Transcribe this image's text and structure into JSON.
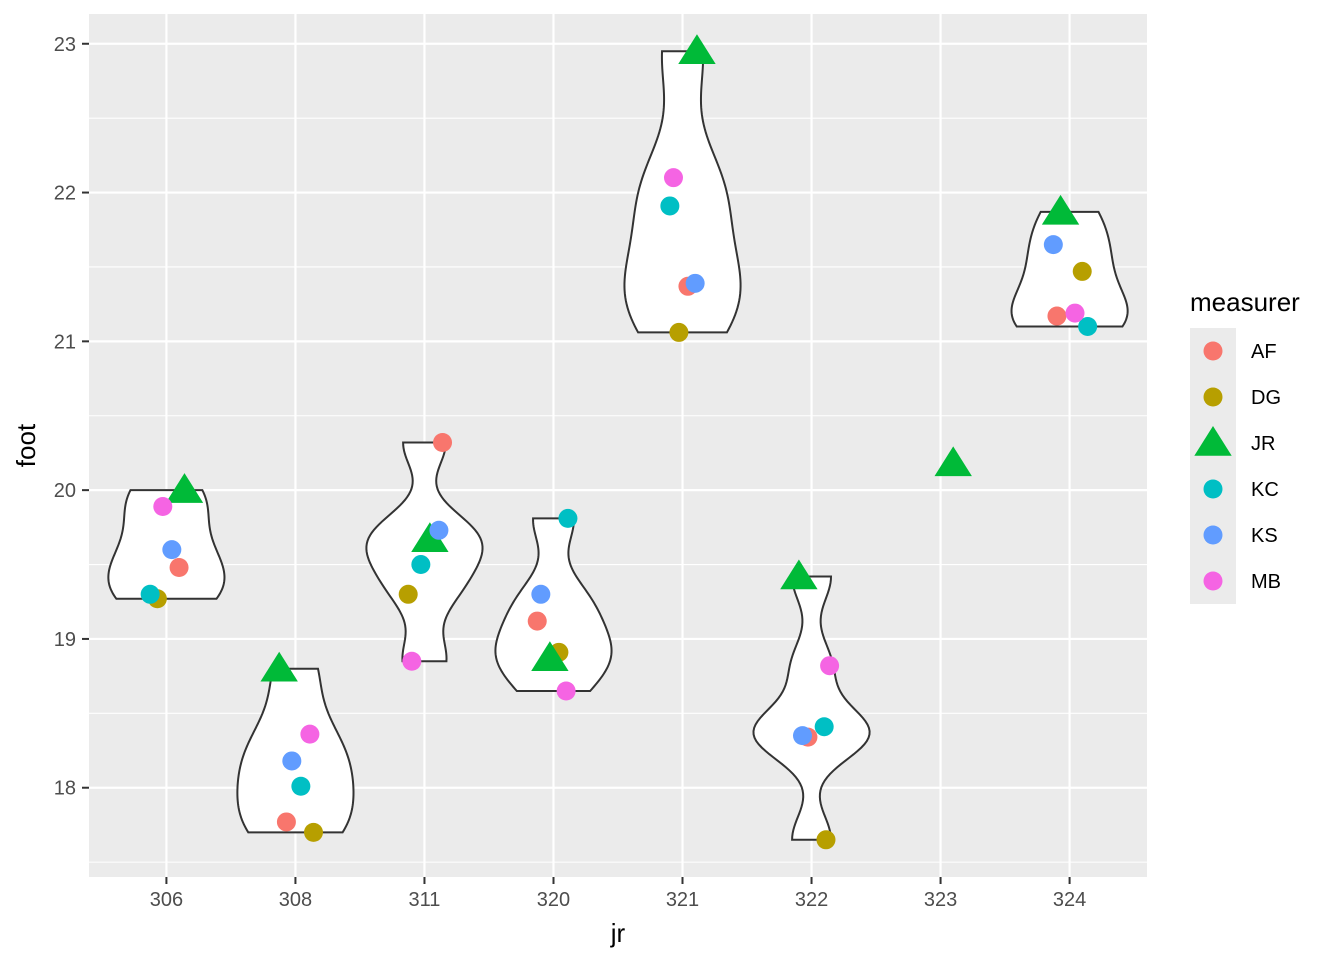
{
  "chart_data": {
    "type": "violin",
    "title": "",
    "xlabel": "jr",
    "ylabel": "foot",
    "categories": [
      "306",
      "308",
      "311",
      "320",
      "321",
      "322",
      "323",
      "324"
    ],
    "ylim": [
      17.4,
      23.2
    ],
    "yticks": [
      18,
      19,
      20,
      21,
      22,
      23
    ],
    "grid": true,
    "legend": {
      "title": "measurer",
      "position": "right",
      "entries": [
        {
          "name": "AF",
          "color": "#F8766D",
          "shape": "circle"
        },
        {
          "name": "DG",
          "color": "#B79F00",
          "shape": "circle"
        },
        {
          "name": "JR",
          "color": "#00BA38",
          "shape": "triangle"
        },
        {
          "name": "KC",
          "color": "#00BFC4",
          "shape": "circle"
        },
        {
          "name": "KS",
          "color": "#619CFF",
          "shape": "circle"
        },
        {
          "name": "MB",
          "color": "#F564E3",
          "shape": "circle"
        }
      ]
    },
    "points": [
      {
        "jr": "306",
        "measurer": "AF",
        "foot": 19.48
      },
      {
        "jr": "306",
        "measurer": "DG",
        "foot": 19.27
      },
      {
        "jr": "306",
        "measurer": "JR",
        "foot": 20.0
      },
      {
        "jr": "306",
        "measurer": "KC",
        "foot": 19.3
      },
      {
        "jr": "306",
        "measurer": "KS",
        "foot": 19.6
      },
      {
        "jr": "306",
        "measurer": "MB",
        "foot": 19.89
      },
      {
        "jr": "308",
        "measurer": "AF",
        "foot": 17.77
      },
      {
        "jr": "308",
        "measurer": "DG",
        "foot": 17.7
      },
      {
        "jr": "308",
        "measurer": "JR",
        "foot": 18.8
      },
      {
        "jr": "308",
        "measurer": "KC",
        "foot": 18.01
      },
      {
        "jr": "308",
        "measurer": "KS",
        "foot": 18.18
      },
      {
        "jr": "308",
        "measurer": "MB",
        "foot": 18.36
      },
      {
        "jr": "311",
        "measurer": "AF",
        "foot": 20.32
      },
      {
        "jr": "311",
        "measurer": "DG",
        "foot": 19.3
      },
      {
        "jr": "311",
        "measurer": "JR",
        "foot": 19.67
      },
      {
        "jr": "311",
        "measurer": "KC",
        "foot": 19.5
      },
      {
        "jr": "311",
        "measurer": "KS",
        "foot": 19.73
      },
      {
        "jr": "311",
        "measurer": "MB",
        "foot": 18.85
      },
      {
        "jr": "320",
        "measurer": "AF",
        "foot": 19.12
      },
      {
        "jr": "320",
        "measurer": "DG",
        "foot": 18.91
      },
      {
        "jr": "320",
        "measurer": "JR",
        "foot": 18.87
      },
      {
        "jr": "320",
        "measurer": "KC",
        "foot": 19.81
      },
      {
        "jr": "320",
        "measurer": "KS",
        "foot": 19.3
      },
      {
        "jr": "320",
        "measurer": "MB",
        "foot": 18.65
      },
      {
        "jr": "321",
        "measurer": "AF",
        "foot": 21.37
      },
      {
        "jr": "321",
        "measurer": "DG",
        "foot": 21.06
      },
      {
        "jr": "321",
        "measurer": "JR",
        "foot": 22.95
      },
      {
        "jr": "321",
        "measurer": "KC",
        "foot": 21.91
      },
      {
        "jr": "321",
        "measurer": "KS",
        "foot": 21.39
      },
      {
        "jr": "321",
        "measurer": "MB",
        "foot": 22.1
      },
      {
        "jr": "322",
        "measurer": "AF",
        "foot": 18.34
      },
      {
        "jr": "322",
        "measurer": "DG",
        "foot": 17.65
      },
      {
        "jr": "322",
        "measurer": "JR",
        "foot": 19.42
      },
      {
        "jr": "322",
        "measurer": "KC",
        "foot": 18.41
      },
      {
        "jr": "322",
        "measurer": "KS",
        "foot": 18.35
      },
      {
        "jr": "322",
        "measurer": "MB",
        "foot": 18.82
      },
      {
        "jr": "323",
        "measurer": "JR",
        "foot": 20.18
      },
      {
        "jr": "324",
        "measurer": "AF",
        "foot": 21.17
      },
      {
        "jr": "324",
        "measurer": "DG",
        "foot": 21.47
      },
      {
        "jr": "324",
        "measurer": "JR",
        "foot": 21.87
      },
      {
        "jr": "324",
        "measurer": "KC",
        "foot": 21.1
      },
      {
        "jr": "324",
        "measurer": "KS",
        "foot": 21.65
      },
      {
        "jr": "324",
        "measurer": "MB",
        "foot": 21.19
      }
    ]
  }
}
